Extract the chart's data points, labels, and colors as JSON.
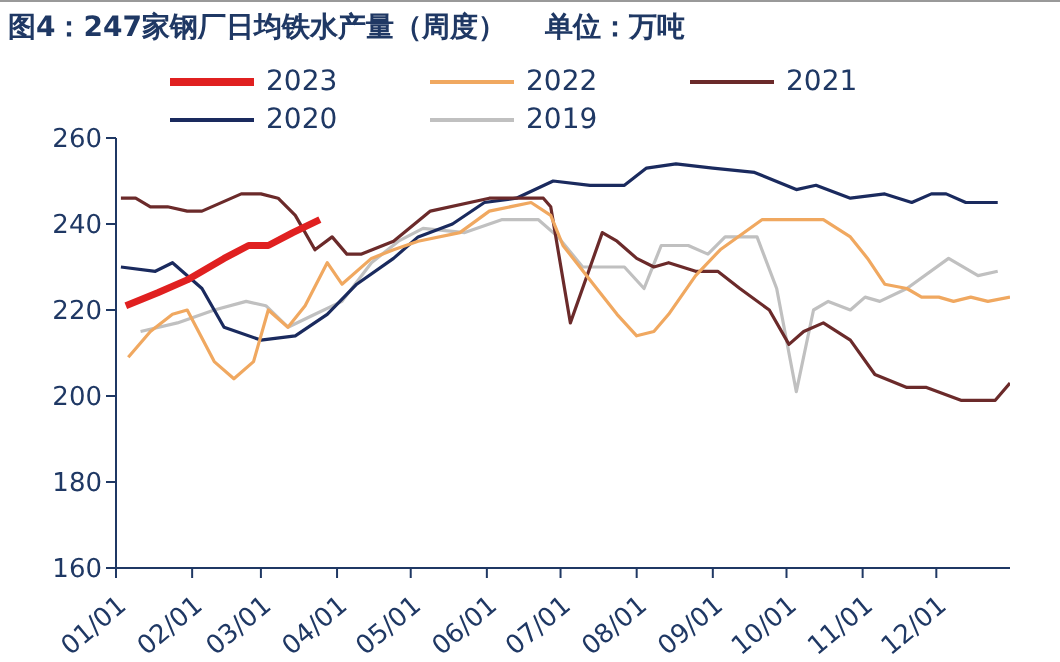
{
  "chart_data": {
    "type": "line",
    "title": "图4：247家钢厂日均铁水产量（周度）    单位：万吨",
    "xlim": [
      "--01-01",
      "--12-31"
    ],
    "xticks": [
      {
        "value": "--01-01",
        "label": "01/01"
      },
      {
        "value": "--02-01",
        "label": "02/01"
      },
      {
        "value": "--03-01",
        "label": "03/01"
      },
      {
        "value": "--04-01",
        "label": "04/01"
      },
      {
        "value": "--05-01",
        "label": "05/01"
      },
      {
        "value": "--06-01",
        "label": "06/01"
      },
      {
        "value": "--07-01",
        "label": "07/01"
      },
      {
        "value": "--08-01",
        "label": "08/01"
      },
      {
        "value": "--09-01",
        "label": "09/01"
      },
      {
        "value": "--10-01",
        "label": "10/01"
      },
      {
        "value": "--11-01",
        "label": "11/01"
      },
      {
        "value": "--12-01",
        "label": "12/01"
      }
    ],
    "ylim": [
      160,
      260
    ],
    "yticks": [
      160,
      180,
      200,
      220,
      240,
      260
    ],
    "grid": false,
    "legend": "top",
    "marker": "none",
    "series": [
      {
        "name": "2023",
        "color": "#e02020",
        "x": [
          "--01-05",
          "--01-18",
          "--01-30",
          "--02-14",
          "--02-24",
          "--03-04",
          "--03-14",
          "--03-25"
        ],
        "values": [
          221,
          224,
          227,
          232,
          235,
          235,
          238,
          241
        ]
      },
      {
        "name": "2022",
        "color": "#f0a860",
        "x": [
          "--01-06",
          "--01-15",
          "--01-24",
          "--01-30",
          "--02-10",
          "--02-18",
          "--02-26",
          "--03-04",
          "--03-12",
          "--03-19",
          "--03-28",
          "--04-03",
          "--04-15",
          "--04-24",
          "--05-04",
          "--05-21",
          "--06-02",
          "--06-19",
          "--06-27",
          "--07-02",
          "--07-13",
          "--07-24",
          "--08-01",
          "--08-08",
          "--08-14",
          "--08-25",
          "--09-04",
          "--09-21",
          "--10-16",
          "--10-27",
          "--11-03",
          "--11-10",
          "--11-19",
          "--11-25",
          "--12-02",
          "--12-08",
          "--12-15",
          "--12-22",
          "--12-31"
        ],
        "values": [
          209,
          215,
          219,
          220,
          208,
          204,
          208,
          220,
          216,
          221,
          231,
          226,
          232,
          234,
          236,
          238,
          243,
          245,
          242,
          235,
          227,
          219,
          214,
          215,
          219,
          228,
          234,
          241,
          241,
          237,
          232,
          226,
          225,
          223,
          223,
          222,
          223,
          222,
          223
        ]
      },
      {
        "name": "2021",
        "color": "#6b2a2a",
        "x": [
          "--01-03",
          "--01-09",
          "--01-15",
          "--01-22",
          "--01-30",
          "--02-05",
          "--02-21",
          "--03-01",
          "--03-08",
          "--03-15",
          "--03-23",
          "--03-30",
          "--04-05",
          "--04-11",
          "--04-24",
          "--05-09",
          "--06-02",
          "--06-24",
          "--06-27",
          "--07-05",
          "--07-18",
          "--07-24",
          "--08-01",
          "--08-08",
          "--08-14",
          "--08-25",
          "--09-03",
          "--09-12",
          "--09-24",
          "--10-02",
          "--10-08",
          "--10-16",
          "--10-27",
          "--11-06",
          "--11-19",
          "--11-27",
          "--12-11",
          "--12-25",
          "--12-31"
        ],
        "values": [
          246,
          246,
          244,
          244,
          243,
          243,
          247,
          247,
          246,
          242,
          234,
          237,
          233,
          233,
          236,
          243,
          246,
          246,
          244,
          217,
          238,
          236,
          232,
          230,
          231,
          229,
          229,
          225,
          220,
          212,
          215,
          217,
          213,
          205,
          202,
          202,
          199,
          199,
          203
        ]
      },
      {
        "name": "2020",
        "color": "#1a2a5e",
        "x": [
          "--01-03",
          "--01-17",
          "--01-24",
          "--02-05",
          "--02-14",
          "--03-01",
          "--03-15",
          "--03-28",
          "--04-09",
          "--04-24",
          "--05-04",
          "--05-18",
          "--05-31",
          "--06-13",
          "--06-28",
          "--07-13",
          "--07-27",
          "--08-05",
          "--08-17",
          "--09-01",
          "--09-18",
          "--10-05",
          "--10-13",
          "--10-27",
          "--11-10",
          "--11-21",
          "--11-29",
          "--12-05",
          "--12-13",
          "--12-26"
        ],
        "values": [
          230,
          229,
          231,
          225,
          216,
          213,
          214,
          219,
          226,
          232,
          237,
          240,
          245,
          246,
          250,
          249,
          249,
          253,
          254,
          253,
          252,
          248,
          249,
          246,
          247,
          245,
          247,
          247,
          245,
          245
        ]
      },
      {
        "name": "2019",
        "color": "#c0c0c0",
        "x": [
          "--01-11",
          "--01-26",
          "--02-10",
          "--02-23",
          "--03-03",
          "--03-12",
          "--03-23",
          "--04-03",
          "--04-15",
          "--04-26",
          "--05-06",
          "--05-23",
          "--06-07",
          "--06-22",
          "--06-30",
          "--07-10",
          "--07-27",
          "--08-04",
          "--08-11",
          "--08-22",
          "--08-30",
          "--09-06",
          "--09-19",
          "--09-27",
          "--10-05",
          "--10-12",
          "--10-18",
          "--10-27",
          "--11-02",
          "--11-08",
          "--11-19",
          "--12-06",
          "--12-18",
          "--12-26"
        ],
        "values": [
          215,
          217,
          220,
          222,
          221,
          216,
          219,
          222,
          231,
          236,
          239,
          238,
          241,
          241,
          237,
          230,
          230,
          225,
          235,
          235,
          233,
          237,
          237,
          225,
          201,
          220,
          222,
          220,
          223,
          222,
          225,
          232,
          228,
          229
        ]
      }
    ]
  }
}
